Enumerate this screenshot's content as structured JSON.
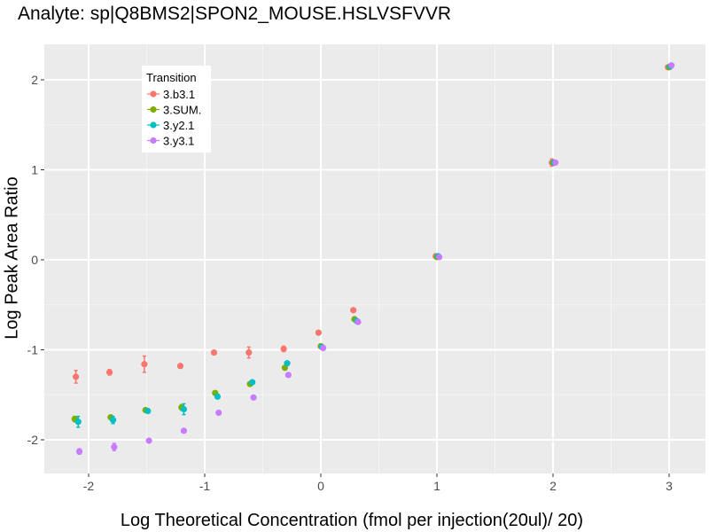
{
  "chart_data": {
    "type": "scatter",
    "title": "Analyte: sp|Q8BMS2|SPON2_MOUSE.HSLVSFVVR",
    "xlabel": "Log Theoretical Concentration (fmol per injection(20ul)/ 20)",
    "ylabel": "Log Peak Area Ratio",
    "xlim": [
      -2.4,
      3.3
    ],
    "ylim": [
      -2.4,
      2.4
    ],
    "x_ticks": [
      -2,
      -1,
      0,
      1,
      2,
      3
    ],
    "x_tick_labels": [
      "-2",
      "-1",
      "0",
      "1",
      "2",
      "3"
    ],
    "y_ticks": [
      -2,
      -1,
      0,
      1,
      2
    ],
    "y_tick_labels": [
      "-2",
      "-1",
      "0",
      "1",
      "2"
    ],
    "grid": true,
    "legend": {
      "title": "Transition",
      "position": "top-left"
    },
    "series": [
      {
        "name": "3.b3.1",
        "color": "#F8766D",
        "points": [
          {
            "x": -2.11,
            "y": -1.3,
            "err": 0.07
          },
          {
            "x": -1.82,
            "y": -1.25,
            "err": 0.03
          },
          {
            "x": -1.52,
            "y": -1.16,
            "err": 0.09
          },
          {
            "x": -1.21,
            "y": -1.18,
            "err": 0.0
          },
          {
            "x": -0.92,
            "y": -1.03,
            "err": 0.0
          },
          {
            "x": -0.62,
            "y": -1.03,
            "err": 0.06
          },
          {
            "x": -0.32,
            "y": -0.99,
            "err": 0.03
          },
          {
            "x": -0.02,
            "y": -0.81,
            "err": 0.0
          },
          {
            "x": 0.28,
            "y": -0.56,
            "err": 0.0
          },
          {
            "x": 0.99,
            "y": 0.04,
            "err": 0.0
          },
          {
            "x": 1.99,
            "y": 1.08,
            "err": 0.04
          },
          {
            "x": 2.99,
            "y": 2.14,
            "err": 0.0
          }
        ]
      },
      {
        "name": "3.SUM.",
        "color": "#7CAE00",
        "points": [
          {
            "x": -2.12,
            "y": -1.77,
            "err": 0.03
          },
          {
            "x": -1.81,
            "y": -1.75,
            "err": 0.02
          },
          {
            "x": -1.51,
            "y": -1.67,
            "err": 0.02
          },
          {
            "x": -1.2,
            "y": -1.64,
            "err": 0.03
          },
          {
            "x": -0.91,
            "y": -1.48,
            "err": 0.0
          },
          {
            "x": -0.61,
            "y": -1.38,
            "err": 0.0
          },
          {
            "x": -0.31,
            "y": -1.2,
            "err": 0.0
          },
          {
            "x": 0.0,
            "y": -0.96,
            "err": 0.0
          },
          {
            "x": 0.29,
            "y": -0.66,
            "err": 0.0
          },
          {
            "x": 1.0,
            "y": 0.03,
            "err": 0.0
          },
          {
            "x": 2.0,
            "y": 1.08,
            "err": 0.0
          },
          {
            "x": 3.0,
            "y": 2.14,
            "err": 0.0
          }
        ]
      },
      {
        "name": "3.y2.1",
        "color": "#00BFC4",
        "points": [
          {
            "x": -2.09,
            "y": -1.8,
            "err": 0.06
          },
          {
            "x": -1.79,
            "y": -1.78,
            "err": 0.04
          },
          {
            "x": -1.49,
            "y": -1.68,
            "err": 0.0
          },
          {
            "x": -1.18,
            "y": -1.66,
            "err": 0.06
          },
          {
            "x": -0.89,
            "y": -1.52,
            "err": 0.0
          },
          {
            "x": -0.59,
            "y": -1.36,
            "err": 0.0
          },
          {
            "x": -0.29,
            "y": -1.15,
            "err": 0.0
          },
          {
            "x": 0.01,
            "y": -0.97,
            "err": 0.0
          },
          {
            "x": 0.31,
            "y": -0.68,
            "err": 0.0
          },
          {
            "x": 1.01,
            "y": 0.04,
            "err": 0.0
          },
          {
            "x": 2.01,
            "y": 1.08,
            "err": 0.0
          },
          {
            "x": 3.01,
            "y": 2.15,
            "err": 0.0
          }
        ]
      },
      {
        "name": "3.y3.1",
        "color": "#C77CFF",
        "points": [
          {
            "x": -2.08,
            "y": -2.13,
            "err": 0.03
          },
          {
            "x": -1.78,
            "y": -2.08,
            "err": 0.04
          },
          {
            "x": -1.48,
            "y": -2.01,
            "err": 0.0
          },
          {
            "x": -1.18,
            "y": -1.9,
            "err": 0.0
          },
          {
            "x": -0.88,
            "y": -1.7,
            "err": 0.02
          },
          {
            "x": -0.58,
            "y": -1.53,
            "err": 0.0
          },
          {
            "x": -0.28,
            "y": -1.28,
            "err": 0.0
          },
          {
            "x": 0.02,
            "y": -0.98,
            "err": 0.0
          },
          {
            "x": 0.32,
            "y": -0.69,
            "err": 0.0
          },
          {
            "x": 1.02,
            "y": 0.03,
            "err": 0.0
          },
          {
            "x": 2.02,
            "y": 1.08,
            "err": 0.0
          },
          {
            "x": 3.02,
            "y": 2.16,
            "err": 0.0
          }
        ]
      }
    ]
  }
}
